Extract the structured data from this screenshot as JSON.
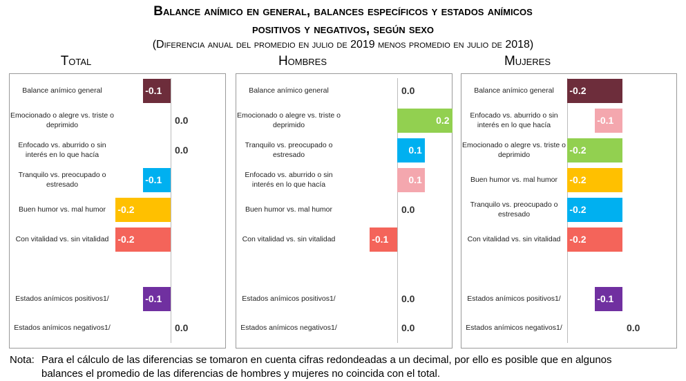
{
  "title": "Balance anímico en general, balances específicos y estados anímicos",
  "title_line2": "positivos y negativos, según sexo",
  "subtitle": "(Diferencia anual del promedio en julio de 2019 menos promedio en julio de 2018)",
  "chart_data": [
    {
      "type": "bar",
      "orientation": "horizontal",
      "title": "Total",
      "categories": [
        "Balance anímico general",
        "Emocionado o alegre vs. triste o deprimido",
        "Enfocado vs. aburrido o sin interés en lo que hacía",
        "Tranquilo vs. preocupado o estresado",
        "Buen humor vs. mal humor",
        "Con vitalidad vs. sin vitalidad",
        "Estados anímicos positivos1/",
        "Estados anímicos negativos1/"
      ],
      "values": [
        -0.1,
        0,
        0,
        -0.1,
        -0.2,
        -0.2,
        -0.1,
        0
      ],
      "value_labels": [
        "-0.1",
        "0.0",
        "0.0",
        "-0.1",
        "-0.2",
        "-0.2",
        "-0.1",
        "0.0"
      ],
      "colors": [
        "#6d2d3b",
        "#92d050",
        "#f4a7ae",
        "#00b0f0",
        "#ffc000",
        "#f4645a",
        "#7030a0",
        "#7f7f7f"
      ]
    },
    {
      "type": "bar",
      "orientation": "horizontal",
      "title": "Hombres",
      "categories": [
        "Balance anímico general",
        "Emocionado o alegre vs. triste o deprimido",
        "Tranquilo vs. preocupado o estresado",
        "Enfocado vs. aburrido o sin interés en lo que hacía",
        "Buen humor vs. mal humor",
        "Con vitalidad vs. sin vitalidad",
        "Estados anímicos positivos1/",
        "Estados anímicos negativos1/"
      ],
      "values": [
        0,
        0.2,
        0.1,
        0.1,
        0,
        -0.1,
        0,
        0
      ],
      "value_labels": [
        "0.0",
        "0.2",
        "0.1",
        "0.1",
        "0.0",
        "-0.1",
        "0.0",
        "0.0"
      ],
      "colors": [
        "#6d2d3b",
        "#92d050",
        "#00b0f0",
        "#f4a7ae",
        "#ffc000",
        "#f4645a",
        "#7030a0",
        "#7f7f7f"
      ]
    },
    {
      "type": "bar",
      "orientation": "horizontal",
      "title": "Mujeres",
      "categories": [
        "Balance anímico general",
        "Enfocado vs. aburrido o sin interés en lo que hacía",
        "Emocionado o alegre vs. triste o deprimido",
        "Buen humor vs. mal humor",
        "Tranquilo vs. preocupado o estresado",
        "Con vitalidad vs. sin vitalidad",
        "Estados anímicos positivos1/",
        "Estados anímicos negativos1/"
      ],
      "values": [
        -0.2,
        -0.1,
        -0.2,
        -0.2,
        -0.2,
        -0.2,
        -0.1,
        0
      ],
      "value_labels": [
        "-0.2",
        "-0.1",
        "-0.2",
        "-0.2",
        "-0.2",
        "-0.2",
        "-0.1",
        "0.0"
      ],
      "colors": [
        "#6d2d3b",
        "#f4a7ae",
        "#92d050",
        "#ffc000",
        "#00b0f0",
        "#f4645a",
        "#7030a0",
        "#7f7f7f"
      ]
    }
  ],
  "note_label": "Nota:",
  "note": [
    "Para el cálculo de las diferencias se tomaron en cuenta cifras redondeadas a un decimal, por ello es posible que en algunos",
    "balances el promedio de las diferencias de hombres y mujeres no coincida con el total."
  ]
}
